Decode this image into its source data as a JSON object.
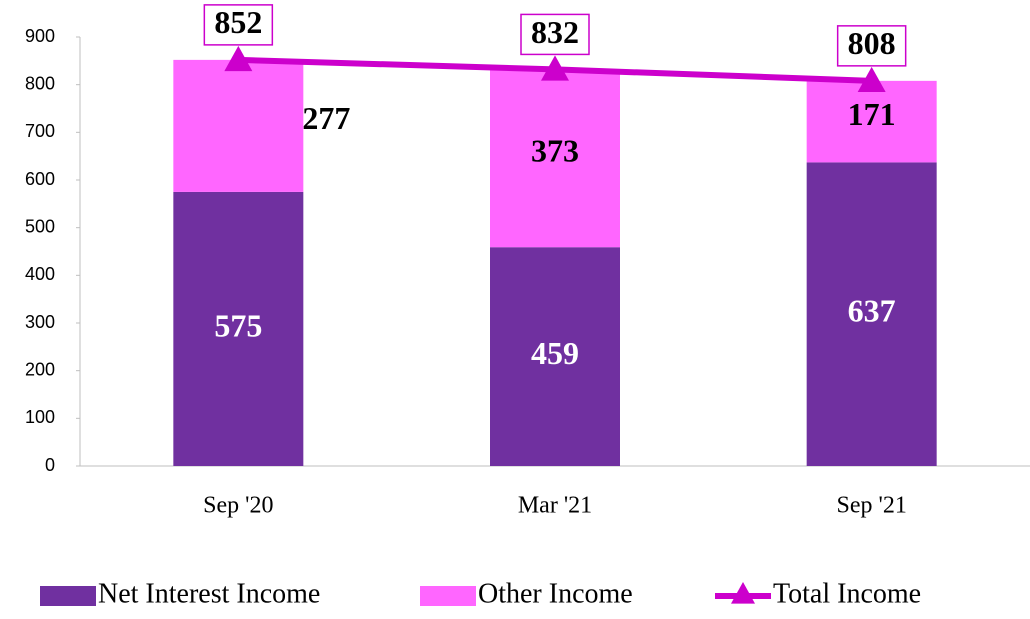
{
  "chart_data": {
    "type": "bar",
    "categories": [
      "Sep '20",
      "Mar '21",
      "Sep '21"
    ],
    "series": [
      {
        "name": "Net Interest Income",
        "color": "#7030a0",
        "values": [
          575,
          459,
          637
        ]
      },
      {
        "name": "Other Income",
        "color": "#ff66ff",
        "values": [
          277,
          373,
          171
        ]
      },
      {
        "name": "Total Income",
        "color": "#cc00cc",
        "type": "line",
        "values": [
          852,
          832,
          808
        ]
      }
    ],
    "stacked": true,
    "ylim": [
      0,
      900
    ],
    "yticks": [
      0,
      100,
      200,
      300,
      400,
      500,
      600,
      700,
      800,
      900
    ],
    "legend": "bottom"
  }
}
